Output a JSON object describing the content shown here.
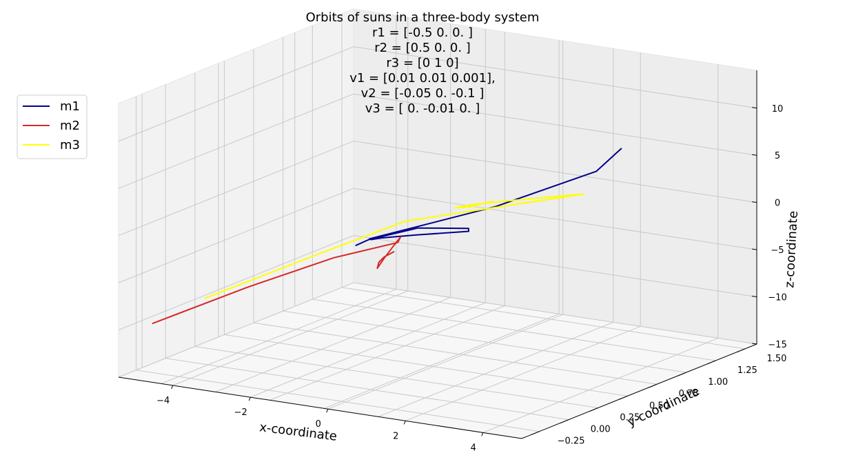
{
  "chart_data": {
    "type": "line",
    "projection": "3d",
    "title_lines": [
      "Orbits of suns in a three-body system",
      "r1 = [-0.5  0.   0. ]",
      "r2 = [0.5 0.  0. ]",
      "r3 = [0 1 0]",
      "v1 = [0.01  0.01  0.001],",
      "v2 = [-0.05  0.   -0.1 ]",
      "v3 = [ 0.   -0.01  0.  ]"
    ],
    "xlabel": "x-coordinate",
    "ylabel": "y-coordinate",
    "zlabel": "z-coordinate",
    "xlim": [
      -5.4,
      5.0
    ],
    "ylim": [
      -0.4,
      1.6
    ],
    "zlim": [
      -15,
      14
    ],
    "xticks": [
      "−4",
      "−2",
      "0",
      "2",
      "4"
    ],
    "yticks": [
      "−0.25",
      "0.00",
      "0.25",
      "0.50",
      "0.75",
      "1.00",
      "1.25",
      "1.50"
    ],
    "zticks": [
      "−15",
      "−10",
      "−5",
      "0",
      "5",
      "10"
    ],
    "grid": true,
    "legend_position": "upper-left",
    "series": [
      {
        "name": "m1",
        "color": "#00008b",
        "points": [
          [
            -0.5,
            0,
            0
          ],
          [
            -0.4,
            0.08,
            0.3
          ],
          [
            0.2,
            0.3,
            0.8
          ],
          [
            0.9,
            0.5,
            0.2
          ],
          [
            0.6,
            0.6,
            -0.8
          ],
          [
            -0.3,
            0.45,
            -1.0
          ],
          [
            -0.6,
            0.25,
            -0.5
          ],
          [
            -0.4,
            0.1,
            0.2
          ],
          [
            -0.2,
            0.02,
            0.8
          ],
          [
            2.5,
            0.2,
            5
          ],
          [
            4.5,
            0.4,
            9
          ],
          [
            5.0,
            0.45,
            11.5
          ]
        ]
      },
      {
        "name": "m2",
        "color": "#d62728",
        "points": [
          [
            0.5,
            0,
            0
          ],
          [
            0.3,
            -0.02,
            -0.6
          ],
          [
            0.1,
            0,
            -1.4
          ],
          [
            0,
            0.02,
            -2.2
          ],
          [
            0.2,
            0.01,
            -1
          ],
          [
            0.45,
            0,
            0.4
          ],
          [
            0.6,
            0.02,
            1.5
          ],
          [
            0.5,
            0.03,
            0.8
          ],
          [
            -1,
            -0.02,
            -1.5
          ],
          [
            -3,
            -0.1,
            -5.5
          ],
          [
            -5.2,
            -0.18,
            -10.3
          ]
        ]
      },
      {
        "name": "m3",
        "color": "#ffff00",
        "points": [
          [
            0,
            1,
            0
          ],
          [
            -0.3,
            0.9,
            -0.3
          ],
          [
            -0.6,
            0.88,
            -0.45
          ],
          [
            -0.3,
            0.95,
            -0.25
          ],
          [
            0.4,
            1.0,
            0.3
          ],
          [
            2.2,
            1.05,
            1.9
          ],
          [
            -1.5,
            0.75,
            -1.8
          ],
          [
            -3,
            0.5,
            -5
          ],
          [
            -5.0,
            0.2,
            -9.4
          ]
        ]
      }
    ]
  }
}
